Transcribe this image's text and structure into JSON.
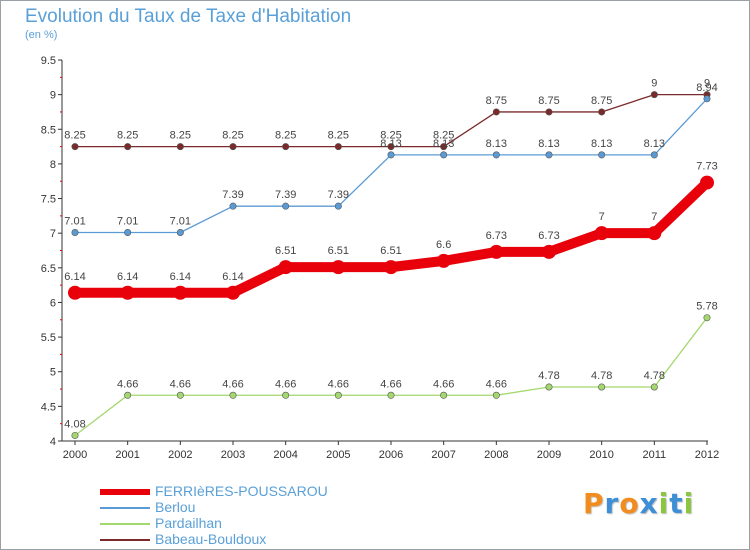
{
  "brand": {
    "text": "Proxiti",
    "letters": [
      "P",
      "r",
      "o",
      "x",
      "i",
      "t",
      "i"
    ],
    "letter_colors": [
      "#f28c1e",
      "#3f8fd6",
      "#f28c1e",
      "#3f8fd6",
      "#8cc63f",
      "#3f8fd6",
      "#8cc63f"
    ]
  },
  "chart_data": {
    "type": "line",
    "title": "Evolution du Taux de Taxe d'Habitation",
    "unit_label": "(en %)",
    "xlabel": "",
    "ylabel": "",
    "x": [
      "2000",
      "2001",
      "2002",
      "2003",
      "2004",
      "2005",
      "2006",
      "2007",
      "2008",
      "2009",
      "2010",
      "2011",
      "2012"
    ],
    "yticks": [
      "4",
      "4.5",
      "5",
      "5.5",
      "6",
      "6.5",
      "7",
      "7.5",
      "8",
      "8.5",
      "9",
      "9.5"
    ],
    "ylim": [
      4,
      9.5
    ],
    "grid": false,
    "legend_position": "bottom-left",
    "series": [
      {
        "name": "FERRIèRES-POUSSAROU",
        "color": "#e8000b",
        "weight": "thick",
        "values": [
          6.14,
          6.14,
          6.14,
          6.14,
          6.51,
          6.51,
          6.51,
          6.6,
          6.73,
          6.73,
          7,
          7,
          7.73
        ],
        "labels": [
          "6.14",
          "6.14",
          "6.14",
          "6.14",
          "6.51",
          "6.51",
          "6.51",
          "6.6",
          "6.73",
          "6.73",
          "7",
          "7",
          "7.73"
        ]
      },
      {
        "name": "Berlou",
        "color": "#5b9bd5",
        "weight": "thin",
        "values": [
          7.01,
          7.01,
          7.01,
          7.39,
          7.39,
          7.39,
          8.13,
          8.13,
          8.13,
          8.13,
          8.13,
          8.13,
          8.94
        ],
        "labels": [
          "7.01",
          "7.01",
          "7.01",
          "7.39",
          "7.39",
          "7.39",
          "8.13",
          "8.13",
          "8.13",
          "8.13",
          "8.13",
          "8.13",
          "8.94"
        ]
      },
      {
        "name": "Pardailhan",
        "color": "#a4d86e",
        "weight": "thin",
        "values": [
          4.08,
          4.66,
          4.66,
          4.66,
          4.66,
          4.66,
          4.66,
          4.66,
          4.66,
          4.78,
          4.78,
          4.78,
          5.78
        ],
        "labels": [
          "4.08",
          "4.66",
          "4.66",
          "4.66",
          "4.66",
          "4.66",
          "4.66",
          "4.66",
          "4.66",
          "4.78",
          "4.78",
          "4.78",
          "5.78"
        ]
      },
      {
        "name": "Babeau-Bouldoux",
        "color": "#7a2a2a",
        "weight": "thin",
        "values": [
          8.25,
          8.25,
          8.25,
          8.25,
          8.25,
          8.25,
          8.25,
          8.25,
          8.75,
          8.75,
          8.75,
          9,
          9
        ],
        "labels": [
          "8.25",
          "8.25",
          "8.25",
          "8.25",
          "8.25",
          "8.25",
          "8.25",
          "8.25",
          "8.75",
          "8.75",
          "8.75",
          "9",
          "9"
        ]
      }
    ]
  }
}
